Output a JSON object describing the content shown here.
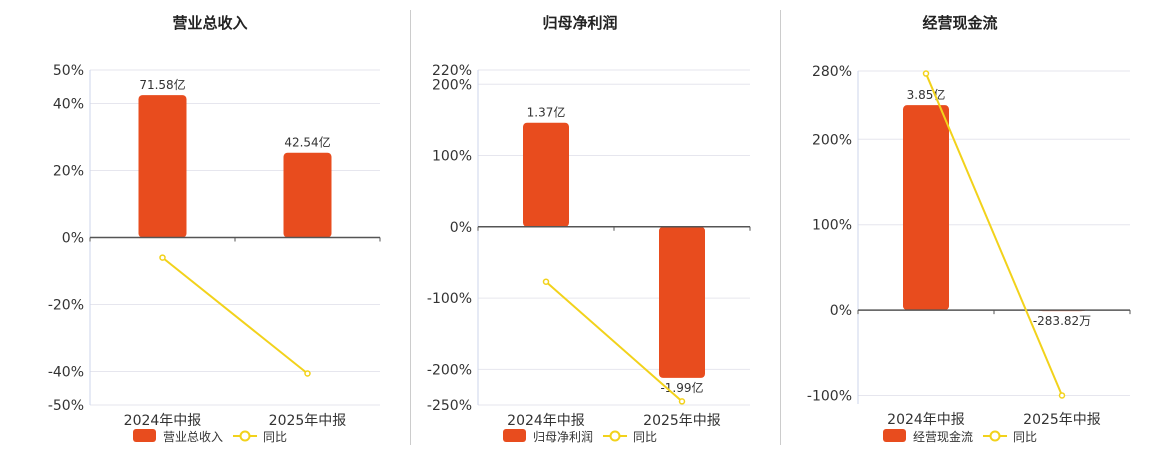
{
  "chart_data": [
    {
      "type": "bar",
      "title": "营业总收入",
      "categories": [
        "2024年中报",
        "2025年中报"
      ],
      "series": [
        {
          "name": "营业总收入",
          "kind": "bar",
          "values": [
            42.5,
            25.3
          ],
          "labels": [
            "71.58亿",
            "42.54亿"
          ],
          "color": "#e84c1e"
        },
        {
          "name": "同比",
          "kind": "line",
          "values": [
            -6,
            -40.6
          ],
          "color": "#f2d21b"
        }
      ],
      "ylim": [
        -50,
        50
      ],
      "yticks": [
        50,
        40,
        20,
        0,
        -20,
        -40,
        -50
      ],
      "ytick_labels": [
        "50%",
        "40%",
        "20%",
        "0%",
        "-20%",
        "-40%",
        "-50%"
      ],
      "xlabel": "",
      "ylabel": "",
      "grid": true,
      "legend_position": "bottom"
    },
    {
      "type": "bar",
      "title": "归母净利润",
      "categories": [
        "2024年中报",
        "2025年中报"
      ],
      "series": [
        {
          "name": "归母净利润",
          "kind": "bar",
          "values": [
            146,
            -212
          ],
          "labels": [
            "1.37亿",
            "-1.99亿"
          ],
          "color": "#e84c1e"
        },
        {
          "name": "同比",
          "kind": "line",
          "values": [
            -77,
            -245
          ],
          "color": "#f2d21b"
        }
      ],
      "ylim": [
        -250,
        220
      ],
      "yticks": [
        220,
        200,
        100,
        0,
        -100,
        -200,
        -250
      ],
      "ytick_labels": [
        "220%",
        "200%",
        "100%",
        "0%",
        "-100%",
        "-200%",
        "-250%"
      ],
      "xlabel": "",
      "ylabel": "",
      "grid": true,
      "legend_position": "bottom"
    },
    {
      "type": "bar",
      "title": "经营现金流",
      "categories": [
        "2024年中报",
        "2025年中报"
      ],
      "series": [
        {
          "name": "经营现金流",
          "kind": "bar",
          "values": [
            240,
            -1
          ],
          "labels": [
            "3.85亿",
            "-283.82万"
          ],
          "color": "#e84c1e"
        },
        {
          "name": "同比",
          "kind": "line",
          "values": [
            277,
            -100
          ],
          "color": "#f2d21b"
        }
      ],
      "ylim": [
        -110,
        280
      ],
      "yticks": [
        280,
        200,
        100,
        0,
        -100
      ],
      "ytick_labels": [
        "280%",
        "200%",
        "100%",
        "0%",
        "-100%"
      ],
      "xlabel": "",
      "ylabel": "",
      "grid": true,
      "legend_position": "bottom"
    }
  ]
}
